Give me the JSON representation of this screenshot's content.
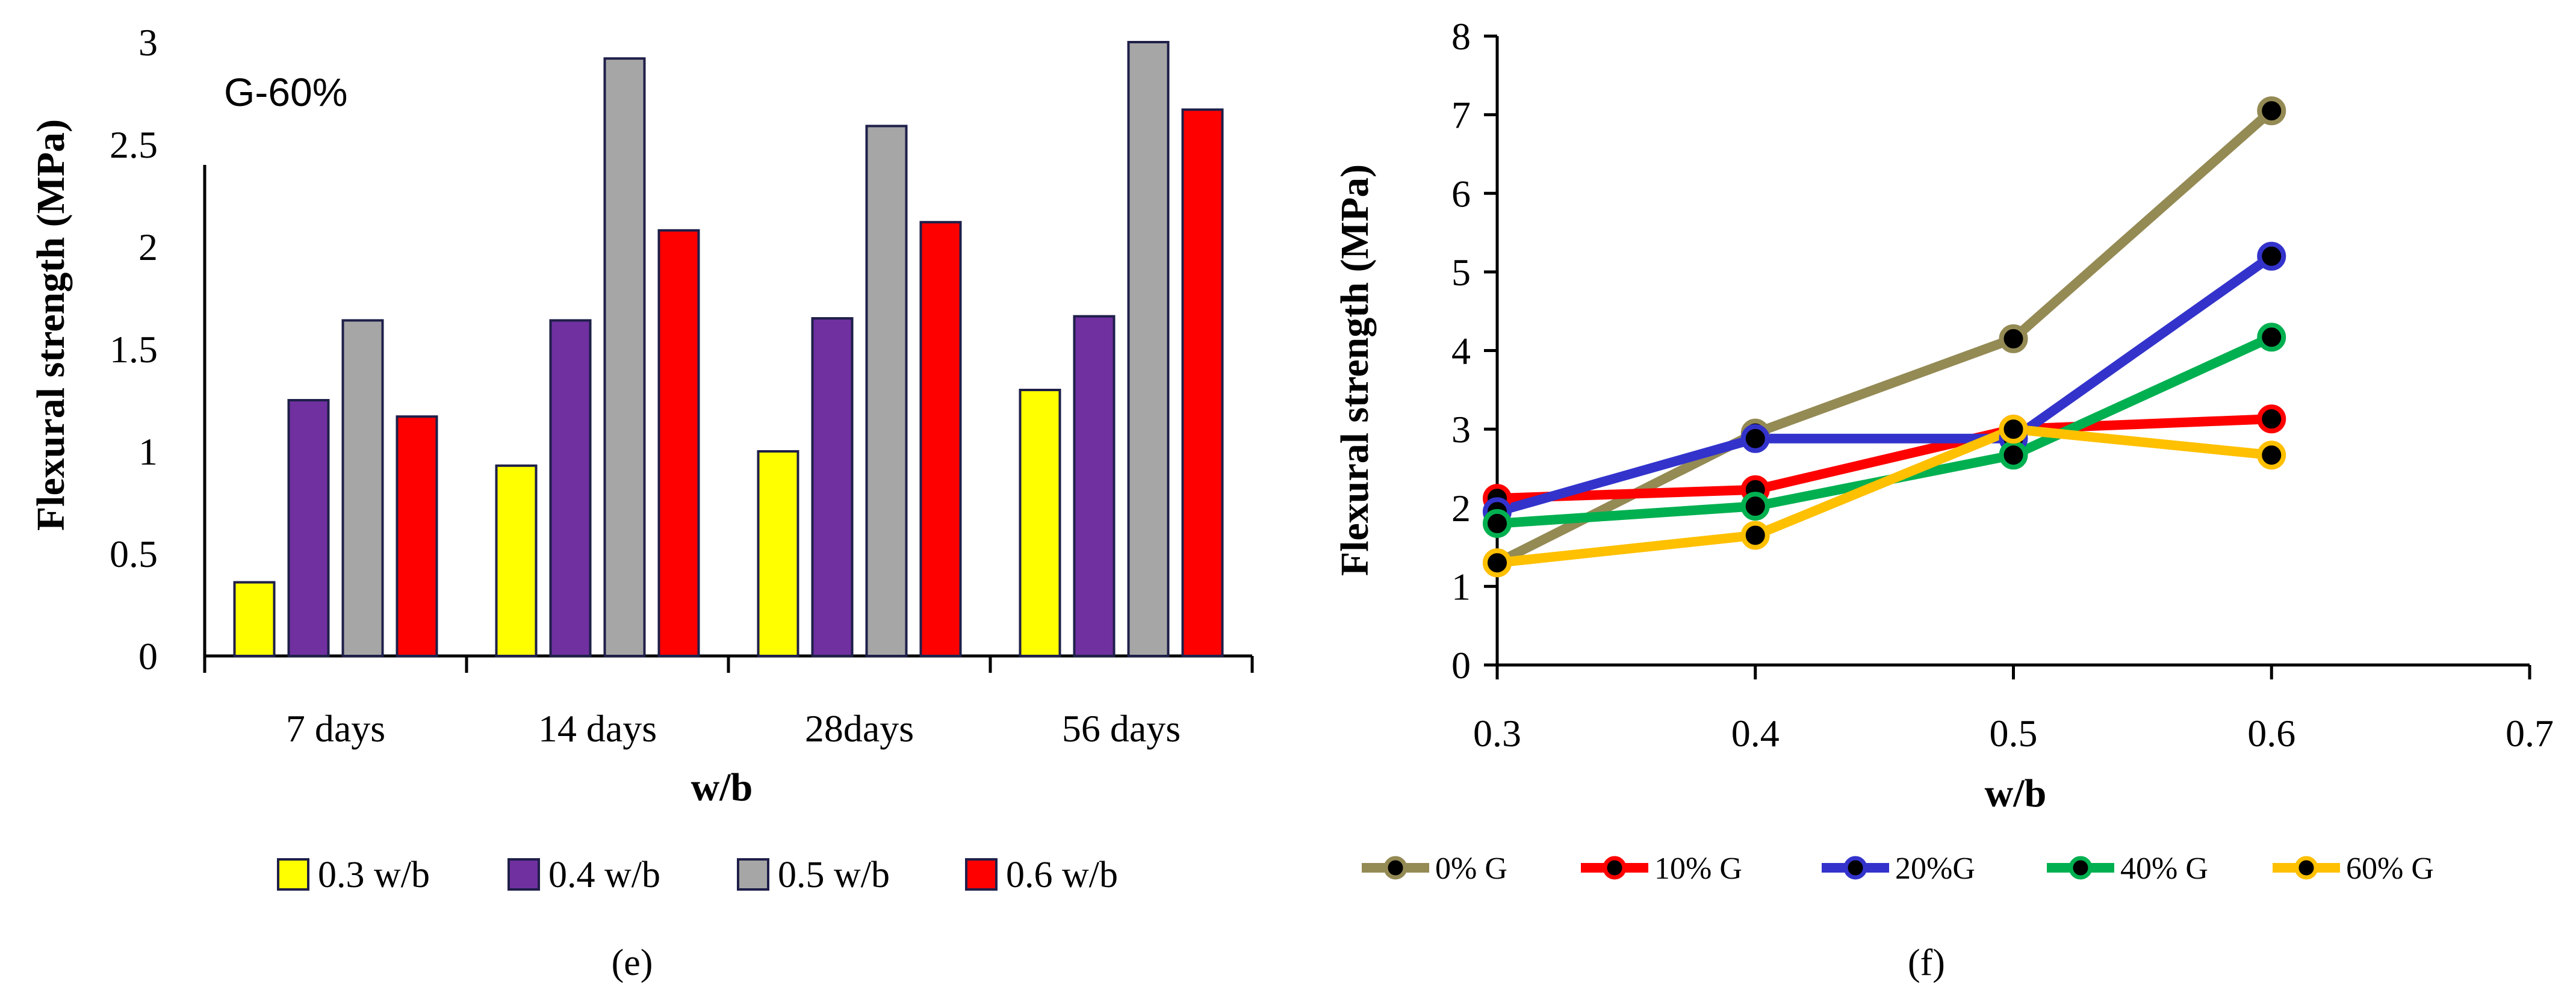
{
  "chart_data": [
    {
      "type": "bar",
      "panel_label": "(e)",
      "annotation": "G-60%",
      "xlabel": "w/b",
      "ylabel": "Flexural strength (MPa)",
      "ylim": [
        0,
        3
      ],
      "yticks": [
        "0",
        "0.5",
        "1",
        "1.5",
        "2",
        "2.5",
        "3"
      ],
      "categories": [
        "7 days",
        "14 days",
        "28days",
        "56 days"
      ],
      "series": [
        {
          "name": "0.3 w/b",
          "color": "#FFFF00",
          "values": [
            0.36,
            0.93,
            1.0,
            1.3
          ]
        },
        {
          "name": "0.4 w/b",
          "color": "#7030A0",
          "values": [
            1.25,
            1.64,
            1.65,
            1.66
          ]
        },
        {
          "name": "0.5 w/b",
          "color": "#A6A6A6",
          "values": [
            1.64,
            2.92,
            2.59,
            3.0
          ]
        },
        {
          "name": "0.6 w/b",
          "color": "#FF0000",
          "values": [
            1.17,
            2.08,
            2.12,
            2.67
          ]
        }
      ],
      "legend": "bottom"
    },
    {
      "type": "line",
      "panel_label": "(f)",
      "xlabel": "w/b",
      "ylabel": "Flexural strength (MPa)",
      "xlim": [
        0.3,
        0.7
      ],
      "ylim": [
        0,
        8
      ],
      "xticks": [
        "0.3",
        "0.4",
        "0.5",
        "0.6",
        "0.7"
      ],
      "yticks": [
        "0",
        "1",
        "2",
        "3",
        "4",
        "5",
        "6",
        "7",
        "8"
      ],
      "x": [
        0.3,
        0.4,
        0.5,
        0.6
      ],
      "series": [
        {
          "name": "0% G",
          "color": "#948A54",
          "values": [
            1.3,
            2.95,
            4.15,
            7.05
          ]
        },
        {
          "name": "10% G",
          "color": "#FF0000",
          "values": [
            2.12,
            2.23,
            3.0,
            3.13
          ]
        },
        {
          "name": "20%G",
          "color": "#3333CC",
          "values": [
            1.95,
            2.88,
            2.88,
            5.2
          ]
        },
        {
          "name": "40% G",
          "color": "#00B050",
          "values": [
            1.8,
            2.02,
            2.67,
            4.17
          ]
        },
        {
          "name": "60% G",
          "color": "#FFC000",
          "values": [
            1.3,
            1.65,
            3.0,
            2.67
          ]
        }
      ],
      "legend": "bottom"
    }
  ]
}
